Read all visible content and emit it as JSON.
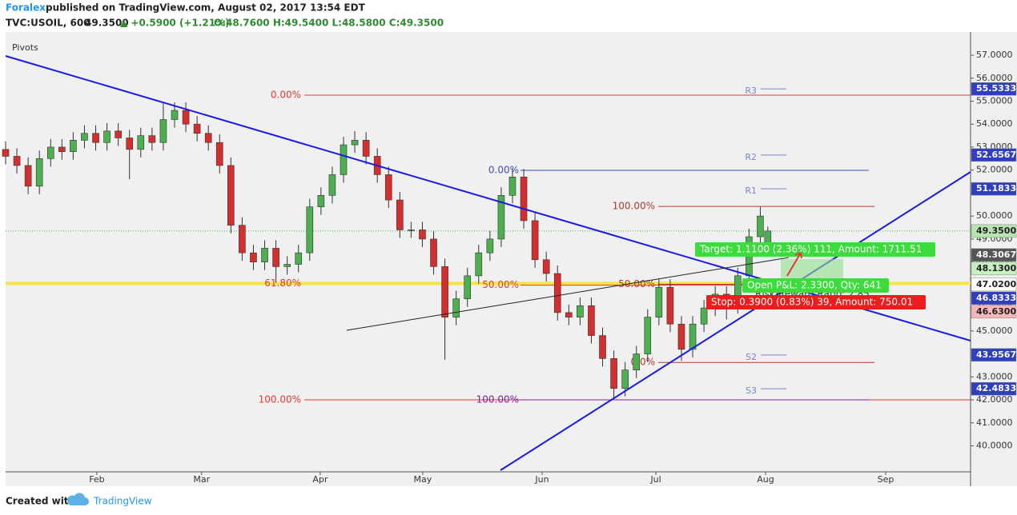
{
  "header": {
    "author": "Foralex",
    "published": "published on TradingView.com, August 02, 2017 13:54 EDT",
    "symbol": "TVC:USOIL, 600",
    "last": "49.3500",
    "change": "▲ +0.5900 (+1.21%)",
    "ohlc": "O:48.7600 H:49.5400 L:48.5800 C:49.3500"
  },
  "footer": {
    "created": "Created with",
    "brand": "TradingView"
  },
  "chart_data": {
    "type": "candlestick",
    "indicator": "Pivots",
    "up_color": "#4caf50",
    "down_color": "#d32f2f",
    "grid": false,
    "x": [
      0,
      3,
      6,
      9,
      12,
      15,
      18,
      21,
      24,
      27,
      30,
      33,
      36,
      39,
      42,
      45,
      48,
      51,
      54,
      57,
      60,
      63,
      66,
      69,
      72,
      75,
      78,
      81,
      84,
      87,
      90,
      93,
      96,
      99,
      102,
      105,
      108,
      111,
      114,
      117,
      120,
      123,
      126,
      129,
      132,
      135,
      138,
      141,
      144,
      147,
      150,
      153,
      156,
      159,
      162,
      165,
      168,
      171,
      174,
      177,
      180,
      183,
      186,
      189,
      192,
      195,
      198,
      201,
      203
    ],
    "open": [
      52.9,
      52.6,
      52.2,
      51.3,
      52.5,
      53.0,
      52.8,
      53.3,
      53.6,
      53.2,
      53.7,
      53.4,
      52.9,
      53.5,
      53.2,
      54.2,
      54.6,
      54.0,
      53.6,
      53.2,
      52.2,
      49.6,
      48.4,
      48.0,
      48.6,
      47.8,
      47.9,
      48.4,
      50.4,
      50.9,
      51.8,
      53.1,
      53.3,
      52.6,
      51.8,
      50.7,
      49.4,
      49.4,
      49.0,
      47.8,
      45.6,
      46.4,
      47.4,
      48.4,
      49.0,
      50.9,
      51.7,
      49.8,
      48.1,
      47.5,
      45.8,
      45.6,
      46.1,
      44.8,
      43.8,
      42.5,
      43.3,
      44.0,
      45.6,
      46.9,
      45.3,
      44.2,
      45.3,
      46.0,
      46.6,
      46.1,
      47.4,
      49.1,
      48.76
    ],
    "high": [
      53.25,
      52.95,
      52.55,
      52.85,
      53.35,
      53.35,
      53.65,
      53.95,
      53.95,
      54.05,
      54.05,
      53.75,
      53.85,
      53.85,
      54.9,
      54.95,
      54.95,
      54.35,
      53.95,
      53.55,
      52.55,
      49.95,
      48.75,
      48.95,
      48.95,
      48.25,
      48.75,
      50.75,
      51.25,
      52.15,
      53.45,
      53.7,
      53.65,
      52.95,
      52.15,
      51.05,
      49.75,
      49.75,
      49.35,
      48.15,
      46.75,
      47.75,
      48.75,
      49.35,
      51.25,
      52.05,
      52.05,
      50.15,
      48.45,
      47.85,
      46.15,
      46.45,
      46.45,
      45.15,
      44.15,
      43.65,
      44.35,
      45.95,
      47.25,
      47.25,
      45.65,
      45.65,
      46.35,
      46.95,
      46.95,
      47.75,
      49.45,
      50.4,
      49.54
    ],
    "low": [
      52.25,
      51.85,
      50.95,
      50.95,
      52.15,
      52.45,
      52.45,
      52.95,
      52.85,
      52.85,
      53.05,
      51.6,
      52.55,
      52.85,
      52.85,
      53.85,
      53.65,
      53.25,
      52.85,
      51.85,
      49.25,
      48.05,
      47.65,
      47.65,
      47.1,
      47.45,
      47.55,
      48.05,
      50.05,
      50.55,
      51.45,
      52.75,
      52.25,
      51.45,
      50.35,
      49.05,
      49.05,
      48.65,
      47.45,
      43.75,
      45.25,
      46.05,
      47.05,
      48.05,
      48.65,
      50.55,
      49.45,
      47.75,
      47.15,
      45.45,
      45.25,
      45.25,
      44.45,
      43.45,
      42.1,
      42.15,
      42.95,
      43.65,
      45.25,
      44.95,
      43.7,
      43.85,
      44.95,
      45.65,
      45.5,
      45.75,
      47.05,
      48.75,
      48.58
    ],
    "close": [
      52.6,
      52.2,
      51.3,
      52.5,
      53.0,
      52.8,
      53.3,
      53.6,
      53.2,
      53.7,
      53.4,
      52.9,
      53.5,
      53.2,
      54.2,
      54.6,
      54.0,
      53.6,
      53.2,
      52.2,
      49.6,
      48.4,
      48.0,
      48.6,
      47.8,
      47.9,
      48.4,
      50.4,
      50.9,
      51.8,
      53.1,
      53.3,
      52.6,
      51.8,
      50.7,
      49.4,
      49.4,
      49.0,
      47.8,
      45.6,
      46.4,
      47.4,
      48.4,
      49.0,
      50.9,
      51.7,
      49.8,
      48.1,
      47.5,
      45.8,
      45.6,
      46.1,
      44.8,
      43.8,
      42.5,
      43.3,
      44.0,
      45.6,
      46.9,
      45.3,
      44.2,
      45.3,
      46.0,
      46.6,
      46.1,
      47.4,
      49.1,
      50.0,
      49.35
    ],
    "xlim": [
      0,
      257
    ],
    "xticks": [
      {
        "value": 24.3,
        "label": "Feb"
      },
      {
        "value": 52.2,
        "label": "Mar"
      },
      {
        "value": 83.8,
        "label": "Apr"
      },
      {
        "value": 111.1,
        "label": "May"
      },
      {
        "value": 142.9,
        "label": "Jun"
      },
      {
        "value": 173.2,
        "label": "Jul"
      },
      {
        "value": 202.4,
        "label": "Aug"
      },
      {
        "value": 234.4,
        "label": "Sep"
      }
    ],
    "ylim": [
      38.87,
      58.01
    ],
    "yticks": [
      {
        "value": 40,
        "label": "40.0000"
      },
      {
        "value": 41,
        "label": "41.0000"
      },
      {
        "value": 42,
        "label": "42.0000"
      },
      {
        "value": 43,
        "label": "43.0000"
      },
      {
        "value": 44,
        "label": "44.0000"
      },
      {
        "value": 45,
        "label": "45.0000"
      },
      {
        "value": 46,
        "label": "46.0000"
      },
      {
        "value": 47,
        "label": "47.0000"
      },
      {
        "value": 48,
        "label": "48.0000"
      },
      {
        "value": 49,
        "label": "49.0000"
      },
      {
        "value": 50,
        "label": "50.0000"
      },
      {
        "value": 51,
        "label": "51.0000"
      },
      {
        "value": 52,
        "label": "52.0000"
      },
      {
        "value": 53,
        "label": "53.0000"
      },
      {
        "value": 54,
        "label": "54.0000"
      },
      {
        "value": 55,
        "label": "55.0000"
      },
      {
        "value": 56,
        "label": "56.0000"
      },
      {
        "value": 57,
        "label": "57.0000"
      }
    ],
    "fib_retracements": [
      {
        "levels": [
          {
            "label": "0.00%",
            "value": 55.26,
            "color": "#e53935"
          },
          {
            "label": "61.80%",
            "value": 47.07,
            "color": "#f5e642"
          },
          {
            "label": "100.00%",
            "value": 42.0,
            "color": "#e53935"
          }
        ]
      },
      {
        "levels": [
          {
            "label": "0.00%",
            "value": 51.99,
            "color": "#3f51b5"
          },
          {
            "label": "50.00%",
            "value": 46.99,
            "color": "#e53935"
          },
          {
            "label": "100.00%",
            "value": 42.0,
            "color": "#7b1fa2"
          }
        ]
      },
      {
        "levels": [
          {
            "label": "100.00%",
            "value": 50.42,
            "color": "#b03a2e"
          },
          {
            "label": "50.00%",
            "value": 47.03,
            "color": "#b03a2e"
          },
          {
            "label": "0.0%",
            "value": 43.63,
            "color": "#b03a2e"
          }
        ]
      }
    ],
    "pivots": [
      {
        "label": "R3",
        "value": 55.5333
      },
      {
        "label": "R2",
        "value": 52.6567
      },
      {
        "label": "R1",
        "value": 51.1833
      },
      {
        "label": "S2",
        "value": 43.9567
      },
      {
        "label": "S3",
        "value": 42.4833
      }
    ],
    "price_badges": [
      {
        "value": 55.5333,
        "color": "#2f3fbf",
        "text_color": "#ffffff"
      },
      {
        "value": 52.6567,
        "color": "#2f3fbf",
        "text_color": "#ffffff"
      },
      {
        "value": 51.1833,
        "color": "#2f3fbf",
        "text_color": "#ffffff"
      },
      {
        "value": 49.35,
        "label": "49.3500",
        "color": "#b7e4b0",
        "text_color": "#222222"
      },
      {
        "value": 48.3067,
        "color": "#555555",
        "text_color": "#ffffff"
      },
      {
        "value": 48.13,
        "label": "48.1300",
        "color": "#c8efc0",
        "text_color": "#222222"
      },
      {
        "value": 47.02,
        "label": "47.0200",
        "color": "#ffffff",
        "text_color": "#222222"
      },
      {
        "value": 46.8333,
        "color": "#2f3fbf",
        "text_color": "#ffffff"
      },
      {
        "value": 46.63,
        "label": "46.6300",
        "color": "#f4b6b6",
        "text_color": "#222222"
      },
      {
        "value": 43.9567,
        "color": "#2f3fbf",
        "text_color": "#ffffff"
      },
      {
        "value": 42.4833,
        "color": "#2f3fbf",
        "text_color": "#ffffff"
      }
    ],
    "position": {
      "target": "Target: 1.1100 (2.36%) 111, Amount: 1711.51",
      "pnl": "Open P&L: 2.3300, Qty: 641",
      "ratio": "Risk/Reward Ratio: 2.85",
      "stop": "Stop: 0.3900 (0.83%) 39, Amount: 750.01"
    }
  }
}
